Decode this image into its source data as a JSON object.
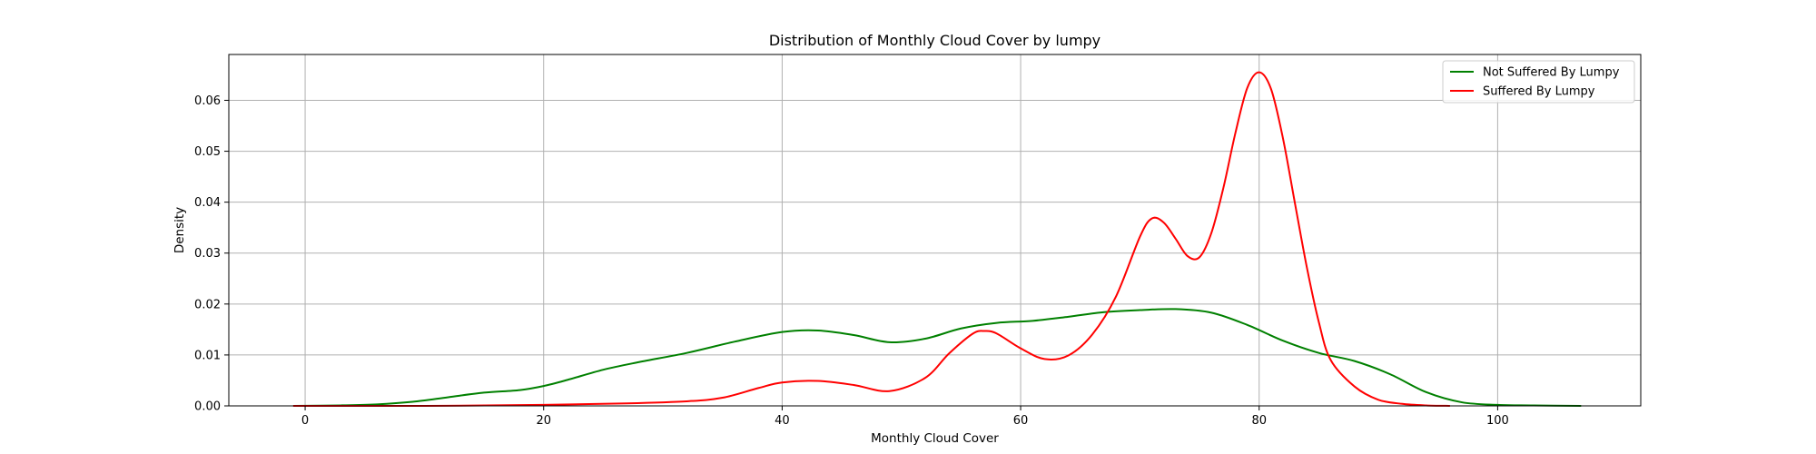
{
  "chart_data": {
    "type": "line",
    "title": "Distribution of Monthly Cloud Cover by lumpy",
    "xlabel": "Monthly Cloud Cover",
    "ylabel": "Density",
    "xlim": [
      -6.4,
      112.0
    ],
    "ylim": [
      0.0,
      0.069
    ],
    "x_ticks": [
      0,
      20,
      40,
      60,
      80,
      100
    ],
    "y_ticks": [
      0.0,
      0.01,
      0.02,
      0.03,
      0.04,
      0.05,
      0.06
    ],
    "y_tick_labels": [
      "0.00",
      "0.01",
      "0.02",
      "0.03",
      "0.04",
      "0.05",
      "0.06"
    ],
    "grid": true,
    "legend_position": "top-right",
    "series": [
      {
        "name": "Not Suffered By Lumpy",
        "color": "#008000",
        "x": [
          -1,
          3,
          6,
          9,
          12,
          15,
          18,
          20,
          22,
          25,
          28,
          32,
          36,
          40,
          43,
          46,
          49,
          52,
          55,
          58,
          61,
          64,
          67,
          70,
          73,
          76,
          79,
          82,
          85,
          88,
          91,
          94,
          97,
          100,
          103,
          107
        ],
        "y": [
          0.0,
          0.0001,
          0.0003,
          0.0008,
          0.0017,
          0.0026,
          0.0031,
          0.0039,
          0.0051,
          0.0071,
          0.0086,
          0.0104,
          0.0126,
          0.0145,
          0.0148,
          0.0139,
          0.0125,
          0.0132,
          0.0152,
          0.0163,
          0.0167,
          0.0175,
          0.0184,
          0.0188,
          0.019,
          0.0183,
          0.0159,
          0.0128,
          0.0104,
          0.0088,
          0.0062,
          0.0027,
          0.0007,
          0.0002,
          0.0001,
          0.0
        ]
      },
      {
        "name": "Suffered By Lumpy",
        "color": "#ff0000",
        "x": [
          -1,
          10,
          20,
          27,
          32,
          35,
          38,
          40,
          43,
          46,
          49,
          52,
          54,
          56,
          57,
          58,
          60,
          62,
          64,
          66,
          68,
          70,
          71,
          72,
          73,
          74,
          75,
          76,
          77,
          78,
          79,
          80,
          81,
          82,
          83,
          84,
          85,
          86,
          88,
          90,
          92,
          94,
          96
        ],
        "y": [
          0.0,
          0.0,
          0.0002,
          0.0005,
          0.0009,
          0.0016,
          0.0035,
          0.0046,
          0.0049,
          0.0041,
          0.0029,
          0.0055,
          0.0103,
          0.0142,
          0.0147,
          0.0142,
          0.0113,
          0.0092,
          0.0099,
          0.014,
          0.0215,
          0.0332,
          0.0368,
          0.036,
          0.0328,
          0.0294,
          0.0292,
          0.034,
          0.0428,
          0.0535,
          0.0624,
          0.0655,
          0.0622,
          0.0525,
          0.0398,
          0.0272,
          0.0165,
          0.009,
          0.0038,
          0.0012,
          0.0004,
          0.0001,
          0.0
        ]
      }
    ]
  }
}
